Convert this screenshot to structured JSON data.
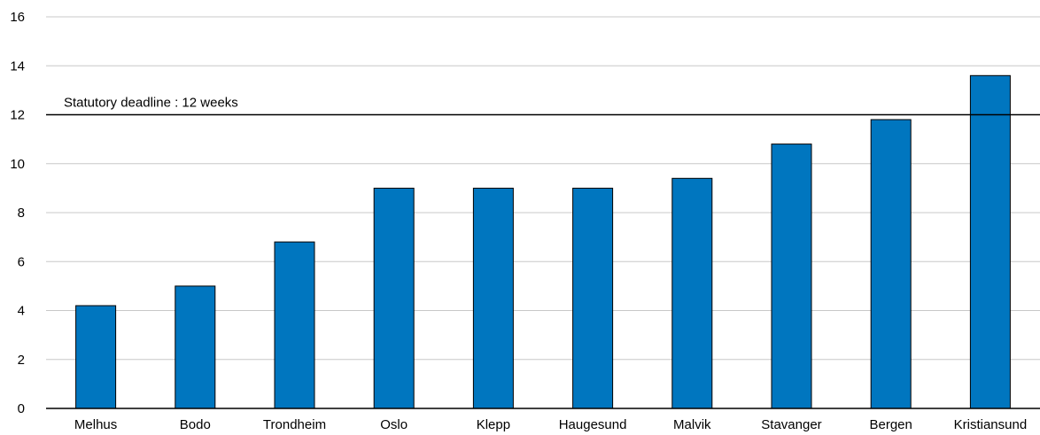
{
  "chart_data": {
    "type": "bar",
    "title": "",
    "xlabel": "",
    "ylabel": "",
    "categories": [
      "Melhus",
      "Bodo",
      "Trondheim",
      "Oslo",
      "Klepp",
      "Haugesund",
      "Malvik",
      "Stavanger",
      "Bergen",
      "Kristiansund"
    ],
    "values": [
      4.2,
      5.0,
      6.8,
      9.0,
      9.0,
      9.0,
      9.4,
      10.8,
      11.8,
      13.6
    ],
    "ylim": [
      0,
      16
    ],
    "yticks": [
      0,
      2,
      4,
      6,
      8,
      10,
      12,
      14,
      16
    ],
    "grid": "horizontal",
    "legend": "none",
    "reference_line": {
      "value": 12,
      "label": "Statutory deadline : 12 weeks"
    },
    "colors": {
      "bar_fill": "#0076BF",
      "bar_stroke": "#000000",
      "grid": "#C8C8C8",
      "axis": "#000000",
      "reference_line": "#000000"
    }
  }
}
